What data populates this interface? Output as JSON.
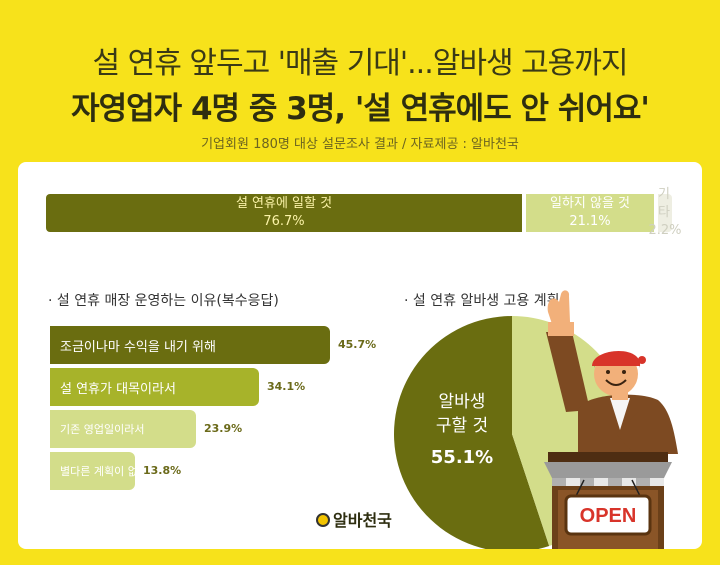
{
  "header": {
    "title_line1": "설 연휴 앞두고 '매출 기대'...알바생 고용까지",
    "title_line2": "자영업자 4명 중 3명, '설 연휴에도 안 쉬어요'",
    "subtitle": "기업회원 180명 대상 설문조사 결과 / 자료제공 : 알바천국"
  },
  "colors": {
    "background": "#f7e21b",
    "dark_olive": "#6a6d10",
    "mid_olive": "#a7b32a",
    "light_olive": "#d3dd8a",
    "pale": "#eeeee2"
  },
  "chart_data": [
    {
      "type": "bar",
      "orientation": "stacked-horizontal",
      "categories": [
        "설 연휴에 일할 것",
        "일하지 않을 것",
        "기타"
      ],
      "values": [
        76.7,
        21.1,
        2.2
      ],
      "labels": [
        "76.7%",
        "21.1%",
        "2.2%"
      ]
    },
    {
      "type": "bar",
      "orientation": "horizontal",
      "title": "· 설 연휴 매장 운영하는 이유(복수응답)",
      "categories": [
        "조금이나마 수익을 내기 위해",
        "설 연휴가 대목이라서",
        "기존 영업일이라서",
        "별다른 계획이 없어서"
      ],
      "values": [
        45.7,
        34.1,
        23.9,
        13.8
      ],
      "labels": [
        "45.7%",
        "34.1%",
        "23.9%",
        "13.8%"
      ]
    },
    {
      "type": "pie",
      "title": "· 설 연휴 알바생 고용 계획",
      "categories": [
        "알바생 구할 것",
        ""
      ],
      "values": [
        55.1,
        44.9
      ],
      "label_text_1": "알바생",
      "label_text_2": "구할 것",
      "label_value": "55.1%"
    }
  ],
  "illustration": {
    "sign_text": "OPEN"
  },
  "footer": {
    "logo_text": "알바천국"
  }
}
